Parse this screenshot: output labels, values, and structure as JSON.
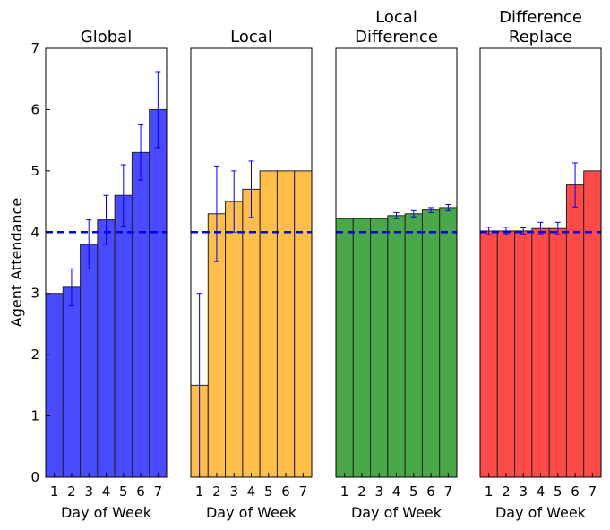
{
  "chart_data": [
    {
      "type": "bar",
      "title": "Global",
      "xlabel": "Day of Week",
      "ylabel": "Agent Attendance",
      "categories": [
        "1",
        "2",
        "3",
        "4",
        "5",
        "6",
        "7"
      ],
      "values": [
        3.0,
        3.1,
        3.8,
        4.2,
        4.6,
        5.3,
        6.0
      ],
      "errors": [
        0.0,
        0.3,
        0.4,
        0.4,
        0.5,
        0.45,
        0.62
      ],
      "color": "#4a4aff",
      "reference_line": 4,
      "ylim": [
        0,
        7
      ],
      "yticks": [
        "0",
        "1",
        "2",
        "3",
        "4",
        "5",
        "6",
        "7"
      ]
    },
    {
      "type": "bar",
      "title": "Local",
      "xlabel": "Day of Week",
      "categories": [
        "1",
        "2",
        "3",
        "4",
        "5",
        "6",
        "7"
      ],
      "values": [
        1.5,
        4.3,
        4.5,
        4.7,
        5.0,
        5.0,
        5.0
      ],
      "errors": [
        1.5,
        0.78,
        0.5,
        0.46,
        0.0,
        0.0,
        0.0
      ],
      "color": "#ffbd4a",
      "reference_line": 4,
      "ylim": [
        0,
        7
      ]
    },
    {
      "type": "bar",
      "title_lines": [
        "Local",
        "Difference"
      ],
      "xlabel": "Day of Week",
      "categories": [
        "1",
        "2",
        "3",
        "4",
        "5",
        "6",
        "7"
      ],
      "values": [
        4.22,
        4.22,
        4.22,
        4.27,
        4.3,
        4.36,
        4.4
      ],
      "errors": [
        0.0,
        0.0,
        0.0,
        0.05,
        0.05,
        0.04,
        0.05
      ],
      "color": "#4aa84a",
      "reference_line": 4,
      "ylim": [
        0,
        7
      ]
    },
    {
      "type": "bar",
      "title_lines": [
        "Difference",
        "Replace"
      ],
      "xlabel": "Day of Week",
      "categories": [
        "1",
        "2",
        "3",
        "4",
        "5",
        "6",
        "7"
      ],
      "values": [
        4.02,
        4.02,
        4.02,
        4.06,
        4.06,
        4.77,
        5.0
      ],
      "errors": [
        0.06,
        0.06,
        0.05,
        0.1,
        0.1,
        0.36,
        0.0
      ],
      "color": "#ff4a4a",
      "reference_line": 4,
      "ylim": [
        0,
        7
      ]
    }
  ]
}
